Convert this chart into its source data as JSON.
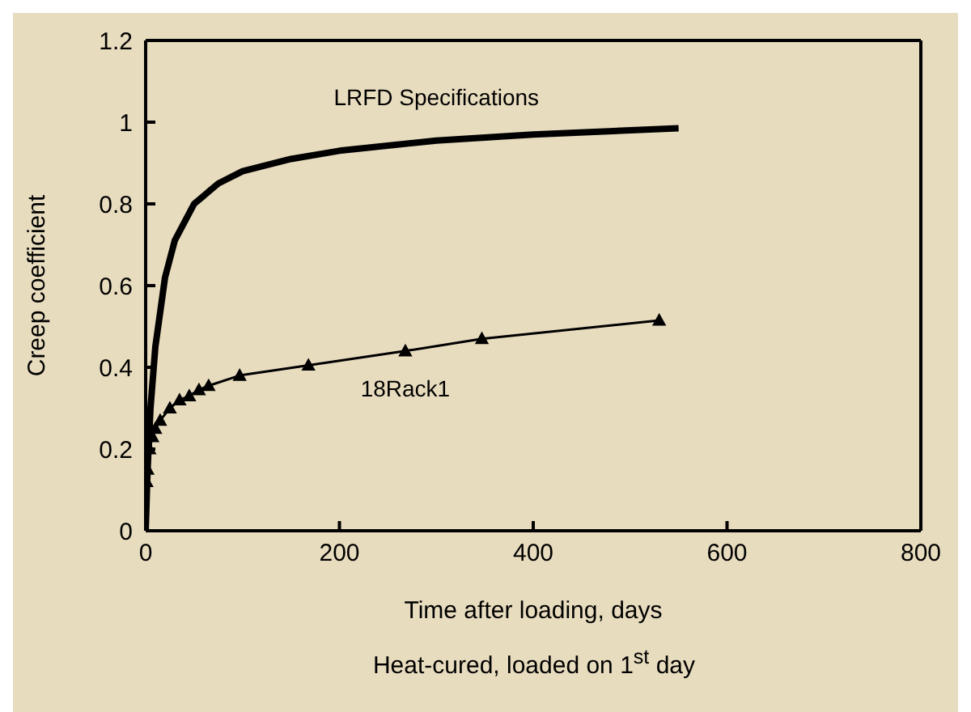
{
  "chart_data": {
    "type": "line",
    "xlabel": "Time after loading, days",
    "ylabel": "Creep coefficient",
    "annotations": [
      "Heat-cured, loaded on 1$^{st}$ day"
    ],
    "series": [
      {
        "name": "LRFD Specifications",
        "color": "#000000",
        "marker": "none",
        "x": [
          0,
          2,
          5,
          10,
          20,
          30,
          50,
          75,
          100,
          150,
          200,
          300,
          400,
          550
        ],
        "values": [
          0,
          0.15,
          0.3,
          0.45,
          0.62,
          0.71,
          0.8,
          0.85,
          0.88,
          0.91,
          0.93,
          0.955,
          0.97,
          0.985
        ]
      },
      {
        "name": "18Rack1",
        "color": "#000000",
        "marker": "triangle",
        "x": [
          0,
          1,
          2,
          4,
          7,
          10,
          15,
          25,
          35,
          45,
          55,
          65,
          97,
          168,
          268,
          347,
          530
        ],
        "values": [
          0,
          0.12,
          0.15,
          0.2,
          0.23,
          0.25,
          0.27,
          0.3,
          0.32,
          0.33,
          0.345,
          0.355,
          0.38,
          0.405,
          0.44,
          0.47,
          0.515
        ]
      }
    ],
    "xlim": [
      0,
      800
    ],
    "xticks": [
      0,
      200,
      400,
      600,
      800
    ],
    "ylim": [
      0,
      1.2
    ],
    "yticks": [
      0,
      0.2,
      0.4,
      0.6,
      0.8,
      1,
      1.2
    ],
    "grid": false,
    "legend": false
  }
}
